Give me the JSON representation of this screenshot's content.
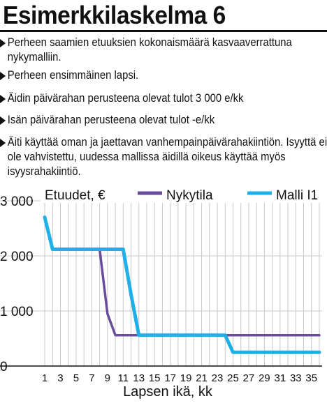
{
  "header": {
    "title": "Esimerkkilaskelma 6"
  },
  "bullets": [
    "Perheen saamien etuuksien kokonaismäärä kasvaaverrattuna nykymalliin.",
    "Perheen ensimmäinen lapsi.",
    "Äidin päivärahan perusteena olevat tulot 3 000 e/kk",
    "Isän päivärahan perusteena olevat tulot -e/kk",
    "Äiti käyttää oman ja jaettavan vanhempainpäivärahakiintiön. Isyyttä ei ole vahvistettu, uudessa mallissa äidillä oikeus käyttää myös isyysrahakiintiö."
  ],
  "colors": {
    "nykytila": "#6a4c9c",
    "malli": "#1fb0e8",
    "grid": "#c8c8c8",
    "text": "#111111"
  },
  "chart_data": {
    "type": "line",
    "ylabel": "Etuudet, €",
    "xlabel": "Lapsen ikä, kk",
    "xlim": [
      1,
      36
    ],
    "ylim": [
      0,
      3000
    ],
    "yticks": [
      0,
      1000,
      2000,
      3000
    ],
    "ytick_labels": [
      "0",
      "1 000",
      "2 000",
      "3 000"
    ],
    "xticks": [
      1,
      3,
      5,
      7,
      9,
      11,
      13,
      15,
      17,
      19,
      21,
      23,
      25,
      27,
      29,
      31,
      33,
      35
    ],
    "grid": true,
    "legend_position": "top",
    "series": [
      {
        "name": "Nykytila",
        "x": [
          1,
          2,
          8,
          9,
          10,
          24,
          36
        ],
        "y": [
          2700,
          2120,
          2120,
          950,
          560,
          560,
          560
        ]
      },
      {
        "name": "Malli I1",
        "x": [
          1,
          2,
          11,
          12,
          13,
          24,
          25,
          36
        ],
        "y": [
          2700,
          2120,
          2120,
          1300,
          560,
          560,
          250,
          250
        ]
      }
    ]
  }
}
